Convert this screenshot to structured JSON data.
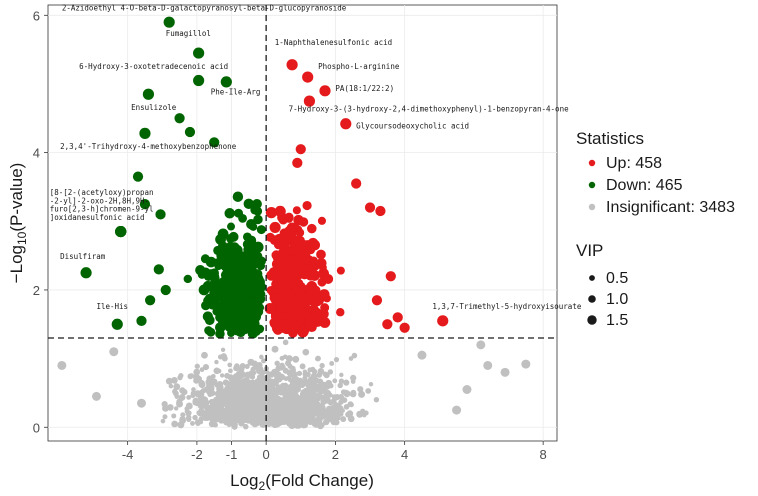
{
  "chart_data": {
    "type": "scatter",
    "title": "",
    "xlabel_main": "Log",
    "xlabel_sub": "2",
    "xlabel_rest": "(Fold Change)",
    "ylabel_prefix": "−Log",
    "ylabel_sub": "10",
    "ylabel_rest": "(P-value)",
    "xlim": [
      -6.3,
      8.4
    ],
    "ylim": [
      -0.2,
      6.15
    ],
    "x_ticks": [
      -4,
      -2,
      -1,
      0,
      2,
      4,
      8
    ],
    "x_tick_labels": [
      "-4",
      "-2",
      "-1",
      "0",
      "2",
      "4",
      "8"
    ],
    "y_ticks": [
      0,
      2,
      4,
      6
    ],
    "y_tick_labels": [
      "0",
      "2",
      "4",
      "6"
    ],
    "grid": true,
    "thresholds": {
      "x": 0,
      "y": 1.3
    },
    "colors": {
      "up": "#e41a1c",
      "down": "#006400",
      "insignificant": "#c0c0c0"
    },
    "legend": {
      "position": "right",
      "stats_title": "Statistics",
      "stats_items": [
        {
          "label": "Up: 458",
          "color": "#e41a1c"
        },
        {
          "label": "Down: 465",
          "color": "#006400"
        },
        {
          "label": "Insignificant: 3483",
          "color": "#c0c0c0"
        }
      ],
      "vip_title": "VIP",
      "vip_items": [
        "0.5",
        "1.0",
        "1.5"
      ]
    },
    "labeled_points": [
      {
        "x": -2.8,
        "y": 5.9,
        "group": "down",
        "vip": 1.5,
        "label": "2-Azidoethyl 4-O-beta-D-galactopyranosyl-beta-D-glucopyranoside",
        "lx": -5.9,
        "ly": 6.07,
        "anchor": "start"
      },
      {
        "x": -1.95,
        "y": 5.45,
        "group": "down",
        "vip": 1.5,
        "label": "Fumagillol",
        "lx": -2.9,
        "ly": 5.7,
        "anchor": "start"
      },
      {
        "x": -1.95,
        "y": 5.05,
        "group": "down",
        "vip": 1.5,
        "label": "6-Hydroxy-3-oxotetradecenoic acid",
        "lx": -5.4,
        "ly": 5.22,
        "anchor": "start"
      },
      {
        "x": -1.15,
        "y": 5.03,
        "group": "down",
        "vip": 1.5,
        "label": "Phe-Ile-Arg",
        "lx": -1.6,
        "ly": 4.85,
        "anchor": "start"
      },
      {
        "x": -3.4,
        "y": 4.85,
        "group": "down",
        "vip": 1.5,
        "label": "Ensulizole",
        "lx": -3.9,
        "ly": 4.62,
        "anchor": "start"
      },
      {
        "x": -3.5,
        "y": 4.28,
        "group": "down",
        "vip": 1.5,
        "label": "2,3,4'-Trihydroxy-4-methoxybenzophenone",
        "lx": -5.95,
        "ly": 4.05,
        "anchor": "start"
      },
      {
        "x": -4.2,
        "y": 2.85,
        "group": "down",
        "vip": 1.5,
        "label": "[8-[2-(acetyloxy)propan",
        "lx": -6.25,
        "ly": 3.38,
        "anchor": "start"
      },
      {
        "x": -4.2,
        "y": 2.85,
        "group": "down",
        "vip": 1.5,
        "label": "-2-yl]-2-oxo-2H,8H,9H-",
        "lx": -6.25,
        "ly": 3.26,
        "anchor": "start"
      },
      {
        "x": -4.2,
        "y": 2.85,
        "group": "down",
        "vip": 1.5,
        "label": "furo[2,3-h]chromen-9-yl",
        "lx": -6.25,
        "ly": 3.14,
        "anchor": "start"
      },
      {
        "x": -4.2,
        "y": 2.85,
        "group": "down",
        "vip": 1.5,
        "label": "]oxidanesulfonic acid",
        "lx": -6.25,
        "ly": 3.02,
        "anchor": "start"
      },
      {
        "x": -5.2,
        "y": 2.25,
        "group": "down",
        "vip": 1.5,
        "label": "Disulfiram",
        "lx": -5.95,
        "ly": 2.45,
        "anchor": "start"
      },
      {
        "x": -4.3,
        "y": 1.5,
        "group": "down",
        "vip": 1.5,
        "label": "Ile-His",
        "lx": -4.9,
        "ly": 1.72,
        "anchor": "start"
      },
      {
        "x": 0.75,
        "y": 5.28,
        "group": "up",
        "vip": 1.5,
        "label": "1-Naphthalenesulfonic acid",
        "lx": 0.25,
        "ly": 5.57,
        "anchor": "start"
      },
      {
        "x": 1.2,
        "y": 5.1,
        "group": "up",
        "vip": 1.5,
        "label": "Phospho-L-arginine",
        "lx": 1.5,
        "ly": 5.22,
        "anchor": "start"
      },
      {
        "x": 1.7,
        "y": 4.9,
        "group": "up",
        "vip": 1.5,
        "label": "PA(18:1/22:2)",
        "lx": 2.0,
        "ly": 4.9,
        "anchor": "start"
      },
      {
        "x": 1.25,
        "y": 4.75,
        "group": "up",
        "vip": 1.5,
        "label": "7-Hydroxy-3-(3-hydroxy-2,4-dimethoxyphenyl)-1-benzopyran-4-one",
        "lx": 0.65,
        "ly": 4.6,
        "anchor": "start"
      },
      {
        "x": 2.3,
        "y": 4.42,
        "group": "up",
        "vip": 1.5,
        "label": "Glycoursodeoxycholic acid",
        "lx": 2.6,
        "ly": 4.35,
        "anchor": "start"
      },
      {
        "x": 5.1,
        "y": 1.55,
        "group": "up",
        "vip": 1.5,
        "label": "1,3,7-Trimethyl-5-hydroxyisourate",
        "lx": 4.8,
        "ly": 1.72,
        "anchor": "start"
      }
    ]
  }
}
